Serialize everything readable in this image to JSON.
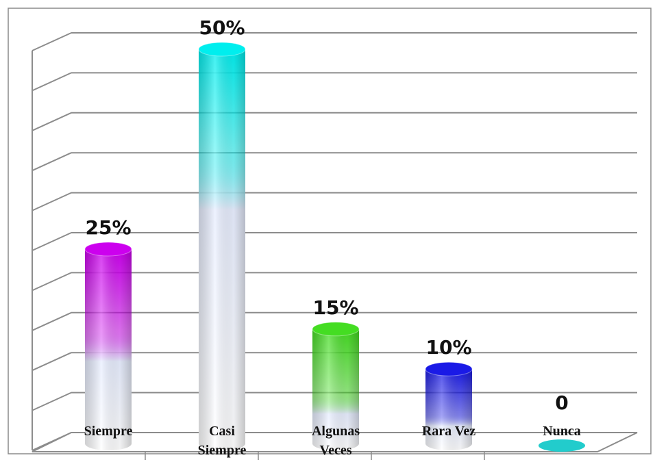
{
  "chart_data": {
    "type": "bar",
    "categories": [
      "Siempre",
      "Casi Siempre",
      "Algunas Veces",
      "Rara Vez",
      "Nunca"
    ],
    "category_lines": [
      [
        "Siempre"
      ],
      [
        "Casi",
        "Siempre"
      ],
      [
        "Algunas",
        "Veces"
      ],
      [
        "Rara Vez"
      ],
      [
        "Nunca"
      ]
    ],
    "values": [
      25,
      50,
      15,
      10,
      0
    ],
    "data_labels": [
      "25%",
      "50%",
      "15%",
      "10%",
      "0"
    ],
    "ylim": [
      0,
      50
    ],
    "grid": true,
    "colors": [
      "#cc00ee",
      "#00eeee",
      "#44dd22",
      "#1a1ae6",
      "#22cccc"
    ],
    "base_color": "#e8eeff"
  }
}
